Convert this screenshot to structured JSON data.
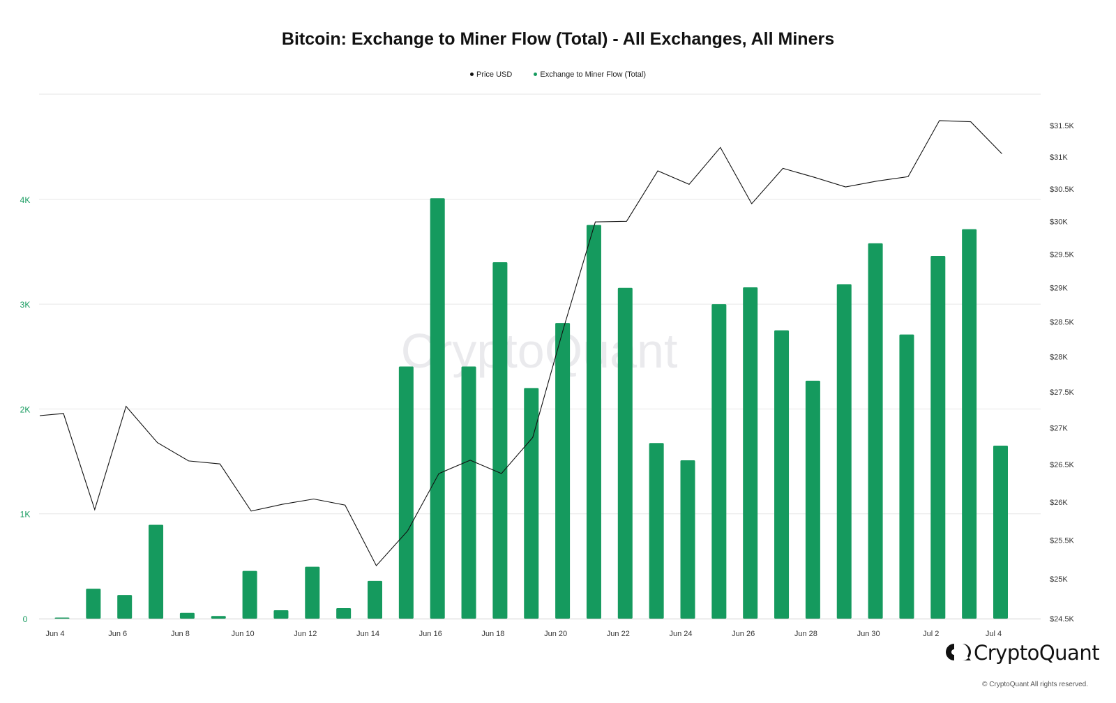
{
  "chart_data": {
    "type": "bar",
    "title": "Bitcoin: Exchange to Miner Flow (Total) - All Exchanges, All Miners",
    "watermark": "CryptoQuant",
    "legend": [
      {
        "name": "Price USD",
        "color": "#111111"
      },
      {
        "name": "Exchange to Miner Flow (Total)",
        "color": "#159a5e"
      }
    ],
    "x_tick_labels": [
      "Jun 4",
      "Jun 6",
      "Jun 8",
      "Jun 10",
      "Jun 12",
      "Jun 14",
      "Jun 16",
      "Jun 18",
      "Jun 20",
      "Jun 22",
      "Jun 24",
      "Jun 26",
      "Jun 28",
      "Jun 30",
      "Jul 2",
      "Jul 4"
    ],
    "dates": [
      "Jun 4",
      "Jun 5",
      "Jun 6",
      "Jun 7",
      "Jun 8",
      "Jun 9",
      "Jun 10",
      "Jun 11",
      "Jun 12",
      "Jun 13",
      "Jun 14",
      "Jun 15",
      "Jun 16",
      "Jun 17",
      "Jun 18",
      "Jun 19",
      "Jun 20",
      "Jun 21",
      "Jun 22",
      "Jun 23",
      "Jun 24",
      "Jun 25",
      "Jun 26",
      "Jun 27",
      "Jun 28",
      "Jun 29",
      "Jun 30",
      "Jul 1",
      "Jul 2",
      "Jul 3",
      "Jul 4"
    ],
    "series": [
      {
        "name": "Exchange to Miner Flow (Total)",
        "type": "bar",
        "axis": "left",
        "color": "#159a5e",
        "values": [
          10,
          285,
          225,
          895,
          55,
          25,
          455,
          80,
          495,
          100,
          360,
          2405,
          4010,
          2405,
          3400,
          2200,
          2820,
          3755,
          3155,
          1675,
          1510,
          3000,
          3160,
          2750,
          2270,
          3190,
          3580,
          2710,
          3460,
          3715,
          1650
        ]
      },
      {
        "name": "Price USD",
        "type": "line",
        "axis": "right",
        "color": "#111111",
        "x": [
          "Jun 3.5",
          "Jun 4.25",
          "Jun 5.25",
          "Jun 6.25",
          "Jun 7.25",
          "Jun 8.25",
          "Jun 9.25",
          "Jun 10.25",
          "Jun 11.25",
          "Jun 12.25",
          "Jun 13.25",
          "Jun 14.25",
          "Jun 15.25",
          "Jun 16.25",
          "Jun 17.25",
          "Jun 18.25",
          "Jun 19.25",
          "Jun 20.25",
          "Jun 21.25",
          "Jun 22.25",
          "Jun 23.25",
          "Jun 24.25",
          "Jun 25.25",
          "Jun 26.25",
          "Jun 27.25",
          "Jun 28.25",
          "Jun 29.25",
          "Jun 30.25",
          "Jul 1.25",
          "Jul 2.25",
          "Jul 3.25",
          "Jul 4.25"
        ],
        "values": [
          27170,
          27200,
          25900,
          27300,
          26800,
          26550,
          26510,
          25880,
          25970,
          26040,
          25960,
          25170,
          25620,
          26380,
          26560,
          26380,
          26870,
          28430,
          29990,
          30000,
          30780,
          30570,
          31150,
          30270,
          30820,
          30680,
          30530,
          30620,
          30690,
          31580,
          31560,
          31050
        ]
      }
    ],
    "y_left": {
      "ticks": [
        0,
        1000,
        2000,
        3000,
        4000
      ],
      "tick_labels": [
        "0",
        "1K",
        "2K",
        "3K",
        "4K"
      ],
      "ylim": [
        0,
        5000
      ],
      "color": "#159a5e"
    },
    "y_right": {
      "ticks": [
        24500,
        25000,
        25500,
        26000,
        26500,
        27000,
        27500,
        28000,
        28500,
        29000,
        29500,
        30000,
        30500,
        31000,
        31500
      ],
      "tick_labels": [
        "$24.5K",
        "$25K",
        "$25.5K",
        "$26K",
        "$26.5K",
        "$27K",
        "$27.5K",
        "$28K",
        "$28.5K",
        "$29K",
        "$29.5K",
        "$30K",
        "$30.5K",
        "$31K",
        "$31.5K"
      ],
      "scale": "log",
      "color": "#333333"
    },
    "grid": true
  },
  "branding": {
    "logo_text": "CryptoQuant",
    "copyright": "© CryptoQuant All rights reserved."
  }
}
